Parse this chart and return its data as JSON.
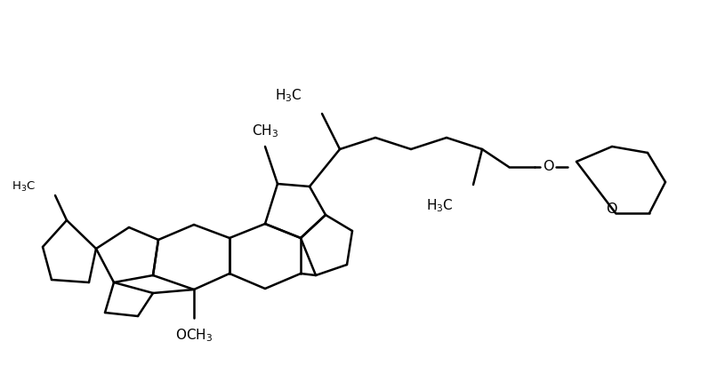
{
  "lw": 1.8,
  "fig_w": 8.15,
  "fig_h": 4.2,
  "dpi": 100,
  "line_color": "#000000",
  "bg_color": "#ffffff",
  "fs": 10.5,
  "fs_small": 9.5
}
